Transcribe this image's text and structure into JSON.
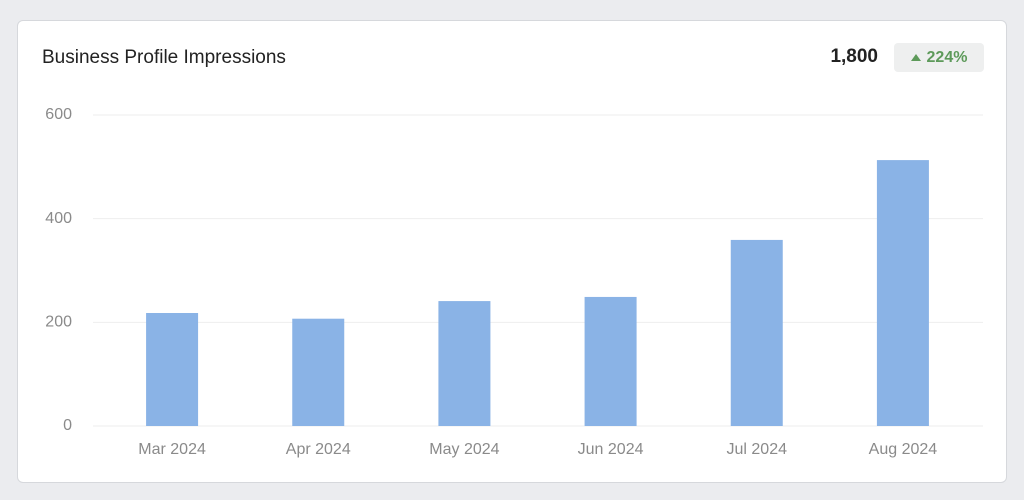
{
  "header": {
    "total": "1,800",
    "change": "224%"
  },
  "chart_data": {
    "type": "bar",
    "title": "Business Profile Impressions",
    "categories": [
      "Mar 2024",
      "Apr 2024",
      "May 2024",
      "Jun 2024",
      "Jul 2024",
      "Aug 2024"
    ],
    "values": [
      218,
      207,
      241,
      249,
      359,
      513
    ],
    "color": "#8ab3e6",
    "ylim": [
      0,
      600
    ],
    "yticks": [
      0,
      200,
      400,
      600
    ],
    "grid": true
  }
}
